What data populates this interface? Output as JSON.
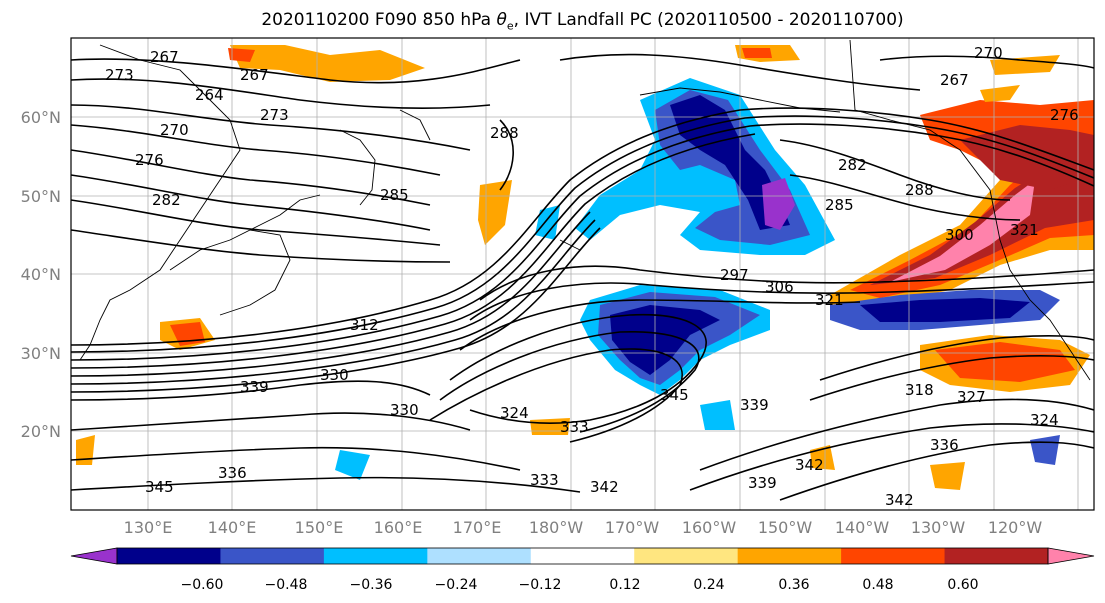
{
  "title_prefix": "2020110200 F090 850 hPa ",
  "title_symbol": "θ",
  "title_subscript": "e",
  "title_suffix": ", IVT Landfall PC (2020110500 - 2020110700)",
  "lat_labels": [
    "60°N",
    "50°N",
    "40°N",
    "30°N",
    "20°N"
  ],
  "lon_labels": [
    "130°E",
    "140°E",
    "150°E",
    "160°E",
    "170°E",
    "180°W",
    "170°W",
    "160°W",
    "150°W",
    "140°W",
    "130°W",
    "120°W"
  ],
  "colorbar": {
    "colors": [
      "#9932cc",
      "#00008b",
      "#3a55c8",
      "#00bfff",
      "#aee0ff",
      "#ffffff",
      "#ffe680",
      "#ffa500",
      "#ff4500",
      "#b22222",
      "#ff82ab"
    ],
    "ticks": [
      "−0.60",
      "−0.48",
      "−0.36",
      "−0.24",
      "−0.12",
      "0.12",
      "0.24",
      "0.36",
      "0.48",
      "0.60"
    ]
  },
  "contour_labels": [
    "273",
    "267",
    "267",
    "264",
    "270",
    "273",
    "276",
    "282",
    "285",
    "288",
    "270",
    "276",
    "267",
    "282",
    "285",
    "288",
    "297",
    "300",
    "306",
    "321",
    "321",
    "312",
    "339",
    "330",
    "330",
    "324",
    "333",
    "333",
    "342",
    "339",
    "345",
    "336",
    "318",
    "327",
    "324",
    "336",
    "342",
    "342",
    "345",
    "339"
  ]
}
